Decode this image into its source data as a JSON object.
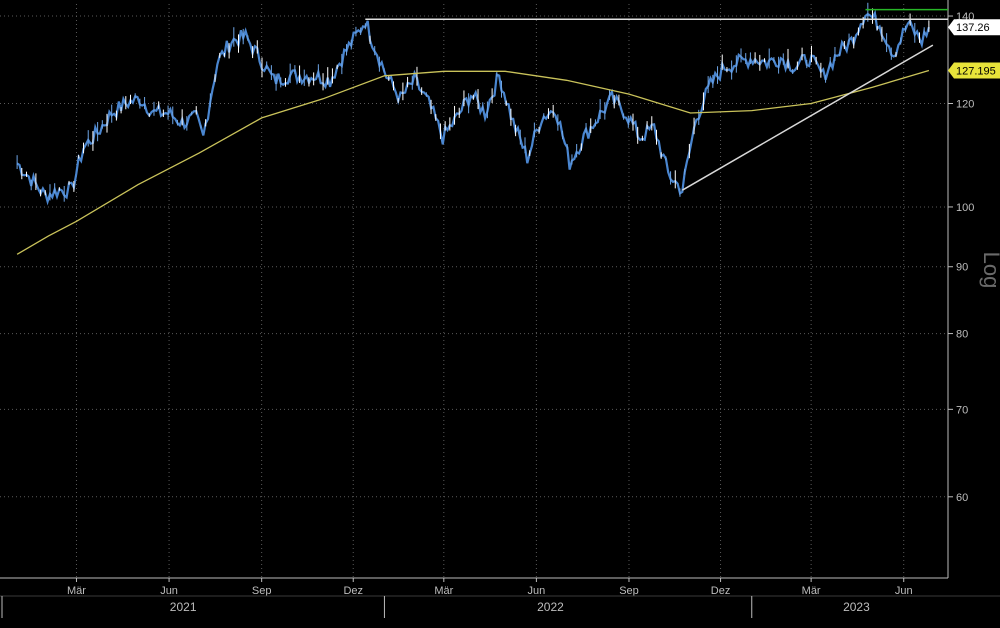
{
  "chart_data": {
    "type": "candlestick",
    "scale": "log",
    "ylabel": "Log",
    "ylim": [
      52,
      143
    ],
    "grid": true,
    "y_ticks": [
      60,
      70,
      80,
      90,
      100,
      120,
      140
    ],
    "month_ticks": [
      {
        "label": "Mär",
        "date": "2021-03-01"
      },
      {
        "label": "Jun",
        "date": "2021-06-01"
      },
      {
        "label": "Sep",
        "date": "2021-09-01"
      },
      {
        "label": "Dez",
        "date": "2021-12-01"
      },
      {
        "label": "Mär",
        "date": "2022-03-01"
      },
      {
        "label": "Jun",
        "date": "2022-06-01"
      },
      {
        "label": "Sep",
        "date": "2022-09-01"
      },
      {
        "label": "Dez",
        "date": "2022-12-01"
      },
      {
        "label": "Mär",
        "date": "2023-03-01"
      },
      {
        "label": "Jun",
        "date": "2023-06-01"
      }
    ],
    "years": [
      {
        "label": "2021",
        "date": "2021-06-15"
      },
      {
        "label": "2022",
        "date": "2022-06-15"
      },
      {
        "label": "2023",
        "date": "2023-04-15"
      }
    ],
    "year_separators": [
      "2022-01-01",
      "2023-01-01"
    ],
    "price_series": {
      "color": "#4a86d0",
      "points": [
        {
          "date": "2021-01-01",
          "value": 108
        },
        {
          "date": "2021-01-15",
          "value": 105
        },
        {
          "date": "2021-01-29",
          "value": 102
        },
        {
          "date": "2021-02-12",
          "value": 103
        },
        {
          "date": "2021-02-24",
          "value": 103
        },
        {
          "date": "2021-03-08",
          "value": 111
        },
        {
          "date": "2021-03-22",
          "value": 114
        },
        {
          "date": "2021-04-05",
          "value": 118
        },
        {
          "date": "2021-04-19",
          "value": 120
        },
        {
          "date": "2021-05-03",
          "value": 121
        },
        {
          "date": "2021-05-17",
          "value": 118
        },
        {
          "date": "2021-05-31",
          "value": 118
        },
        {
          "date": "2021-06-14",
          "value": 116
        },
        {
          "date": "2021-06-28",
          "value": 117
        },
        {
          "date": "2021-07-05",
          "value": 113
        },
        {
          "date": "2021-07-19",
          "value": 129
        },
        {
          "date": "2021-08-02",
          "value": 134
        },
        {
          "date": "2021-08-16",
          "value": 135
        },
        {
          "date": "2021-08-30",
          "value": 130
        },
        {
          "date": "2021-09-13",
          "value": 125
        },
        {
          "date": "2021-09-27",
          "value": 126
        },
        {
          "date": "2021-10-11",
          "value": 126
        },
        {
          "date": "2021-10-25",
          "value": 126
        },
        {
          "date": "2021-11-08",
          "value": 125
        },
        {
          "date": "2021-11-22",
          "value": 131
        },
        {
          "date": "2021-12-06",
          "value": 136
        },
        {
          "date": "2021-12-13",
          "value": 139
        },
        {
          "date": "2021-12-20",
          "value": 134
        },
        {
          "date": "2022-01-03",
          "value": 126
        },
        {
          "date": "2022-01-17",
          "value": 121
        },
        {
          "date": "2022-01-31",
          "value": 125
        },
        {
          "date": "2022-02-14",
          "value": 120
        },
        {
          "date": "2022-02-28",
          "value": 113
        },
        {
          "date": "2022-03-14",
          "value": 117
        },
        {
          "date": "2022-03-28",
          "value": 122
        },
        {
          "date": "2022-04-11",
          "value": 118
        },
        {
          "date": "2022-04-25",
          "value": 126
        },
        {
          "date": "2022-05-09",
          "value": 116
        },
        {
          "date": "2022-05-23",
          "value": 109
        },
        {
          "date": "2022-06-06",
          "value": 117
        },
        {
          "date": "2022-06-20",
          "value": 119
        },
        {
          "date": "2022-07-04",
          "value": 108
        },
        {
          "date": "2022-07-18",
          "value": 113
        },
        {
          "date": "2022-08-01",
          "value": 117
        },
        {
          "date": "2022-08-15",
          "value": 121
        },
        {
          "date": "2022-08-29",
          "value": 118
        },
        {
          "date": "2022-09-12",
          "value": 113
        },
        {
          "date": "2022-09-26",
          "value": 115
        },
        {
          "date": "2022-10-10",
          "value": 106
        },
        {
          "date": "2022-10-24",
          "value": 103
        },
        {
          "date": "2022-11-07",
          "value": 117
        },
        {
          "date": "2022-11-21",
          "value": 124
        },
        {
          "date": "2022-12-05",
          "value": 128
        },
        {
          "date": "2022-12-19",
          "value": 129
        },
        {
          "date": "2023-01-02",
          "value": 130
        },
        {
          "date": "2023-01-16",
          "value": 129
        },
        {
          "date": "2023-01-30",
          "value": 130
        },
        {
          "date": "2023-02-13",
          "value": 128
        },
        {
          "date": "2023-02-27",
          "value": 130
        },
        {
          "date": "2023-03-13",
          "value": 126
        },
        {
          "date": "2023-03-27",
          "value": 131
        },
        {
          "date": "2023-04-10",
          "value": 134
        },
        {
          "date": "2023-04-24",
          "value": 141
        },
        {
          "date": "2023-05-08",
          "value": 138
        },
        {
          "date": "2023-05-22",
          "value": 131
        },
        {
          "date": "2023-06-05",
          "value": 138
        },
        {
          "date": "2023-06-19",
          "value": 134
        },
        {
          "date": "2023-06-26",
          "value": 137.26
        }
      ]
    },
    "moving_average": {
      "color": "#c9c25a",
      "points": [
        {
          "date": "2021-01-01",
          "value": 92
        },
        {
          "date": "2021-02-01",
          "value": 95
        },
        {
          "date": "2021-03-01",
          "value": 97.5
        },
        {
          "date": "2021-05-01",
          "value": 104
        },
        {
          "date": "2021-07-01",
          "value": 110
        },
        {
          "date": "2021-09-01",
          "value": 117
        },
        {
          "date": "2021-11-01",
          "value": 121
        },
        {
          "date": "2022-01-01",
          "value": 126
        },
        {
          "date": "2022-03-01",
          "value": 127
        },
        {
          "date": "2022-05-01",
          "value": 127
        },
        {
          "date": "2022-07-01",
          "value": 125
        },
        {
          "date": "2022-09-01",
          "value": 122
        },
        {
          "date": "2022-11-01",
          "value": 118
        },
        {
          "date": "2023-01-01",
          "value": 118.5
        },
        {
          "date": "2023-03-01",
          "value": 120
        },
        {
          "date": "2023-05-01",
          "value": 123.5
        },
        {
          "date": "2023-06-26",
          "value": 127.195
        }
      ]
    },
    "trendlines": [
      {
        "color": "#d8d8d8",
        "from": {
          "date": "2022-10-24",
          "value": 103
        },
        "to": {
          "date": "2023-06-30",
          "value": 133
        }
      },
      {
        "color": "#e0e0e0",
        "from": {
          "date": "2021-12-13",
          "value": 139.2
        },
        "to": {
          "date": "2023-07-15",
          "value": 139.2
        }
      },
      {
        "color": "#27b627",
        "from": {
          "date": "2023-04-24",
          "value": 141.6
        },
        "to": {
          "date": "2023-07-15",
          "value": 141.6
        }
      }
    ],
    "last_value_labels": [
      {
        "value": "137.26",
        "y_value": 137.26,
        "bg": "#ffffff",
        "fg": "#000000"
      },
      {
        "value": "127.195",
        "y_value": 127.195,
        "bg": "#e8e43a",
        "fg": "#000000"
      }
    ]
  }
}
